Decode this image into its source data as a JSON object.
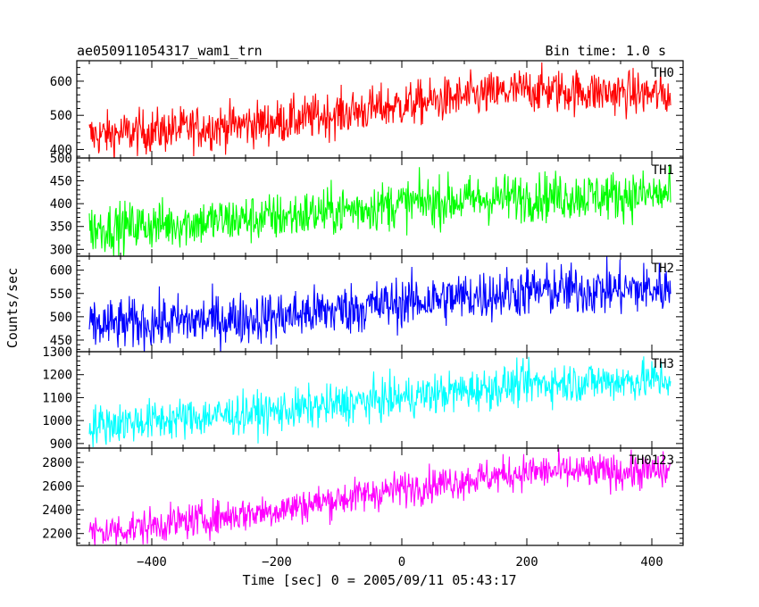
{
  "header": {
    "left": "ae050911054317_wam1_trn",
    "right": "Bin time: 1.0 s"
  },
  "xlabel": "Time [sec] 0 = 2005/09/11 05:43:17",
  "ylabel": "Counts/sec",
  "chart_data": {
    "type": "line",
    "x_range": [
      -500,
      430
    ],
    "xlim": [
      -520,
      450
    ],
    "xticks": [
      -400,
      -200,
      0,
      200,
      400
    ],
    "xtick_labels": [
      "−400",
      "−200",
      "0",
      "200",
      "400"
    ],
    "series": [
      {
        "name": "TH0",
        "color": "#ff0000",
        "ylim": [
          375,
          660
        ],
        "yticks": [
          400,
          500,
          600
        ],
        "ytick_labels": [
          "400",
          "500",
          "600"
        ],
        "trend": [
          [
            -500,
            440
          ],
          [
            -200,
            480
          ],
          [
            0,
            530
          ],
          [
            200,
            575
          ],
          [
            430,
            560
          ]
        ],
        "noise": 33
      },
      {
        "name": "TH1",
        "color": "#00ff00",
        "ylim": [
          285,
          500
        ],
        "yticks": [
          300,
          350,
          400,
          450,
          500
        ],
        "ytick_labels": [
          "300",
          "350",
          "400",
          "450",
          "500"
        ],
        "trend": [
          [
            -500,
            345
          ],
          [
            -200,
            370
          ],
          [
            0,
            400
          ],
          [
            200,
            415
          ],
          [
            430,
            420
          ]
        ],
        "noise": 27
      },
      {
        "name": "TH2",
        "color": "#0000ff",
        "ylim": [
          425,
          630
        ],
        "yticks": [
          450,
          500,
          550,
          600
        ],
        "ytick_labels": [
          "450",
          "500",
          "550",
          "600"
        ],
        "trend": [
          [
            -500,
            480
          ],
          [
            -200,
            500
          ],
          [
            0,
            530
          ],
          [
            200,
            555
          ],
          [
            430,
            560
          ]
        ],
        "noise": 28
      },
      {
        "name": "TH3",
        "color": "#00ffff",
        "ylim": [
          880,
          1300
        ],
        "yticks": [
          900,
          1000,
          1100,
          1200,
          1300
        ],
        "ytick_labels": [
          "900",
          "1000",
          "1100",
          "1200",
          "1300"
        ],
        "trend": [
          [
            -500,
            980
          ],
          [
            -200,
            1040
          ],
          [
            0,
            1100
          ],
          [
            200,
            1160
          ],
          [
            430,
            1180
          ]
        ],
        "noise": 45
      },
      {
        "name": "TH0123",
        "color": "#ff00ff",
        "ylim": [
          2100,
          2920
        ],
        "yticks": [
          2200,
          2400,
          2600,
          2800
        ],
        "ytick_labels": [
          "2200",
          "2400",
          "2600",
          "2800"
        ],
        "trend": [
          [
            -500,
            2200
          ],
          [
            -200,
            2400
          ],
          [
            0,
            2580
          ],
          [
            200,
            2720
          ],
          [
            430,
            2720
          ]
        ],
        "noise": 75
      }
    ]
  }
}
